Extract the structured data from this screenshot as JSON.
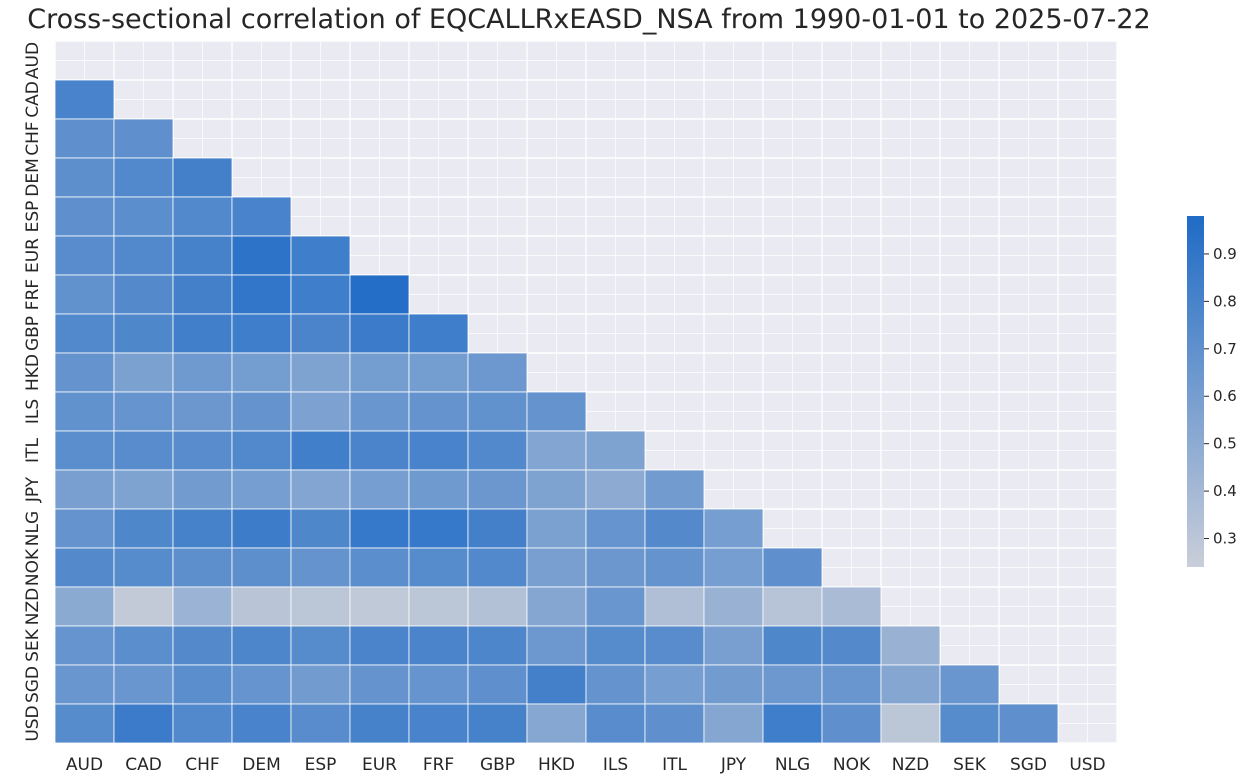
{
  "chart_data": {
    "type": "heatmap",
    "title": "Cross-sectional correlation of EQCALLRxEASD_NSA from 1990-01-01 to 2025-07-22",
    "categories": [
      "AUD",
      "CAD",
      "CHF",
      "DEM",
      "ESP",
      "EUR",
      "FRF",
      "GBP",
      "HKD",
      "ILS",
      "ITL",
      "JPY",
      "NLG",
      "NOK",
      "NZD",
      "SEK",
      "SGD",
      "USD"
    ],
    "mask": "upper-triangle-including-diagonal",
    "values": [
      [],
      [
        0.8
      ],
      [
        0.7,
        0.7
      ],
      [
        0.71,
        0.76,
        0.82
      ],
      [
        0.7,
        0.72,
        0.76,
        0.8
      ],
      [
        0.73,
        0.76,
        0.81,
        0.92,
        0.84
      ],
      [
        0.69,
        0.75,
        0.82,
        0.9,
        0.84,
        0.96
      ],
      [
        0.76,
        0.77,
        0.83,
        0.84,
        0.79,
        0.86,
        0.84
      ],
      [
        0.68,
        0.58,
        0.63,
        0.61,
        0.56,
        0.61,
        0.61,
        0.64
      ],
      [
        0.69,
        0.67,
        0.65,
        0.68,
        0.57,
        0.66,
        0.68,
        0.69,
        0.68
      ],
      [
        0.72,
        0.73,
        0.73,
        0.76,
        0.83,
        0.79,
        0.8,
        0.76,
        0.55,
        0.56
      ],
      [
        0.59,
        0.56,
        0.62,
        0.6,
        0.55,
        0.6,
        0.63,
        0.65,
        0.56,
        0.5,
        0.62
      ],
      [
        0.68,
        0.77,
        0.81,
        0.85,
        0.77,
        0.88,
        0.88,
        0.82,
        0.58,
        0.67,
        0.75,
        0.6
      ],
      [
        0.75,
        0.74,
        0.71,
        0.71,
        0.68,
        0.72,
        0.74,
        0.76,
        0.59,
        0.65,
        0.68,
        0.6,
        0.7
      ],
      [
        0.51,
        0.27,
        0.44,
        0.31,
        0.3,
        0.28,
        0.3,
        0.34,
        0.54,
        0.66,
        0.35,
        0.45,
        0.32,
        0.38
      ],
      [
        0.67,
        0.72,
        0.75,
        0.78,
        0.74,
        0.79,
        0.79,
        0.78,
        0.64,
        0.74,
        0.73,
        0.59,
        0.77,
        0.75,
        0.45
      ],
      [
        0.66,
        0.66,
        0.72,
        0.67,
        0.62,
        0.68,
        0.67,
        0.7,
        0.82,
        0.68,
        0.6,
        0.62,
        0.64,
        0.66,
        0.54,
        0.66
      ],
      [
        0.74,
        0.86,
        0.76,
        0.8,
        0.73,
        0.81,
        0.8,
        0.81,
        0.53,
        0.73,
        0.7,
        0.54,
        0.84,
        0.7,
        0.3,
        0.74,
        0.7
      ]
    ],
    "colorbar": {
      "min": 0.24,
      "max": 0.98,
      "ticks": [
        0.3,
        0.4,
        0.5,
        0.6,
        0.7,
        0.8,
        0.9
      ]
    },
    "colors": {
      "low": "#c9ced9",
      "high": "#1f6bc6",
      "masked": "#eaeaf2",
      "grid": "#ffffff",
      "text": "#262626"
    }
  }
}
